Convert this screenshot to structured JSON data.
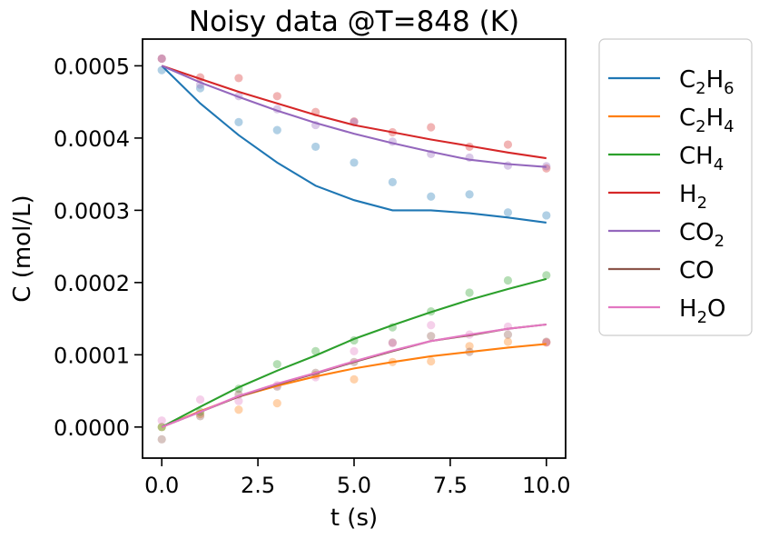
{
  "chart_data": {
    "type": "line",
    "title": "Noisy data @T=848 (K)",
    "xlabel": "t (s)",
    "ylabel": "C (mol/L)",
    "xlim": [
      -0.5,
      10.5
    ],
    "ylim": [
      -4.3e-05,
      0.000537
    ],
    "xticks": [
      0.0,
      2.5,
      5.0,
      7.5,
      10.0
    ],
    "xtick_labels": [
      "0.0",
      "2.5",
      "5.0",
      "7.5",
      "10.0"
    ],
    "yticks": [
      0.0,
      0.0001,
      0.0002,
      0.0003,
      0.0004,
      0.0005
    ],
    "ytick_labels": [
      "0.0000",
      "0.0001",
      "0.0002",
      "0.0003",
      "0.0004",
      "0.0005"
    ],
    "grid": false,
    "legend_position": "outside-right",
    "x": [
      0,
      1,
      2,
      3,
      4,
      5,
      6,
      7,
      8,
      9,
      10
    ],
    "series": [
      {
        "name": "C2H6",
        "label_parts": [
          [
            "C",
            false
          ],
          [
            "2",
            true
          ],
          [
            "H",
            false
          ],
          [
            "6",
            true
          ]
        ],
        "color": "#1f77b4",
        "fit": [
          0.0005,
          0.000448,
          0.000404,
          0.000366,
          0.000334,
          0.000314,
          0.0003,
          0.0003,
          0.000296,
          0.00029,
          0.000283
        ],
        "points": [
          0.000494,
          0.000469,
          0.000422,
          0.000411,
          0.000388,
          0.000366,
          0.000339,
          0.000319,
          0.000322,
          0.000297,
          0.000293
        ]
      },
      {
        "name": "C2H4",
        "label_parts": [
          [
            "C",
            false
          ],
          [
            "2",
            true
          ],
          [
            "H",
            false
          ],
          [
            "4",
            true
          ]
        ],
        "color": "#ff7f0e",
        "fit": [
          0.0,
          2.2e-05,
          4.2e-05,
          5.7e-05,
          7e-05,
          8.1e-05,
          9e-05,
          9.8e-05,
          0.000104,
          0.00011,
          0.000115
        ],
        "points": [
          0.0,
          1.8e-05,
          2.4e-05,
          3.3e-05,
          7.2e-05,
          6.6e-05,
          9e-05,
          9.1e-05,
          0.000112,
          0.000118,
          0.000117
        ]
      },
      {
        "name": "CH4",
        "label_parts": [
          [
            "CH",
            false
          ],
          [
            "4",
            true
          ]
        ],
        "color": "#2ca02c",
        "fit": [
          0.0,
          2.8e-05,
          5.5e-05,
          7.8e-05,
          9.9e-05,
          0.000122,
          0.000141,
          0.000159,
          0.000176,
          0.000191,
          0.000205
        ],
        "points": [
          0.0,
          2.1e-05,
          5.3e-05,
          8.7e-05,
          0.000105,
          0.00012,
          0.000138,
          0.00016,
          0.000186,
          0.000203,
          0.00021
        ]
      },
      {
        "name": "H2",
        "label_parts": [
          [
            "H",
            false
          ],
          [
            "2",
            true
          ]
        ],
        "color": "#d62728",
        "fit": [
          0.0005,
          0.000482,
          0.000464,
          0.000448,
          0.000432,
          0.000418,
          0.000408,
          0.000398,
          0.000389,
          0.00038,
          0.000372
        ],
        "points": [
          0.00051,
          0.000484,
          0.000483,
          0.000458,
          0.000436,
          0.000423,
          0.000408,
          0.000415,
          0.000388,
          0.000391,
          0.000358
        ]
      },
      {
        "name": "CO2",
        "label_parts": [
          [
            "CO",
            false
          ],
          [
            "2",
            true
          ]
        ],
        "color": "#9467bd",
        "fit": [
          0.0005,
          0.000477,
          0.000457,
          0.000438,
          0.000421,
          0.000406,
          0.000393,
          0.000381,
          0.00037,
          0.000364,
          0.00036
        ],
        "points": [
          0.00051,
          0.000474,
          0.000458,
          0.00044,
          0.000418,
          0.000422,
          0.000395,
          0.000378,
          0.000373,
          0.000362,
          0.000361
        ]
      },
      {
        "name": "CO",
        "label_parts": [
          [
            "CO",
            false
          ]
        ],
        "color": "#8c564b",
        "fit": [
          0.0,
          2.1e-05,
          4.2e-05,
          5.9e-05,
          7.4e-05,
          9e-05,
          0.000105,
          0.000119,
          0.000127,
          0.000136,
          0.000142
        ],
        "points": [
          -1.7e-05,
          1.5e-05,
          4.5e-05,
          5.6e-05,
          7.5e-05,
          9e-05,
          0.000117,
          0.000126,
          0.000104,
          0.000128,
          0.000118
        ]
      },
      {
        "name": "H2O",
        "label_parts": [
          [
            "H",
            false
          ],
          [
            "2",
            true
          ],
          [
            "O",
            false
          ]
        ],
        "color": "#e377c2",
        "fit": [
          0.0,
          2.1e-05,
          4.3e-05,
          6e-05,
          7.5e-05,
          9.1e-05,
          0.000106,
          0.000119,
          0.000128,
          0.000136,
          0.000142
        ],
        "points": [
          9e-06,
          3.8e-05,
          3.6e-05,
          5.8e-05,
          6.9e-05,
          0.000105,
          0.000116,
          0.000141,
          0.000128,
          0.000139,
          0.000117
        ]
      }
    ]
  }
}
